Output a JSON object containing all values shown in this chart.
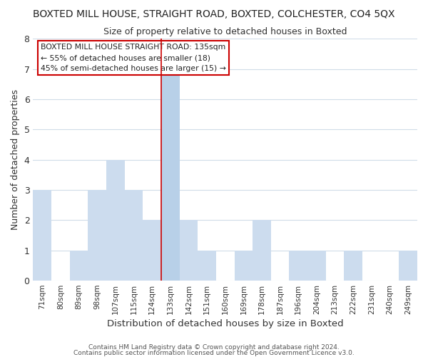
{
  "title": "BOXTED MILL HOUSE, STRAIGHT ROAD, BOXTED, COLCHESTER, CO4 5QX",
  "subtitle": "Size of property relative to detached houses in Boxted",
  "xlabel": "Distribution of detached houses by size in Boxted",
  "ylabel": "Number of detached properties",
  "bin_labels": [
    "71sqm",
    "80sqm",
    "89sqm",
    "98sqm",
    "107sqm",
    "115sqm",
    "124sqm",
    "133sqm",
    "142sqm",
    "151sqm",
    "160sqm",
    "169sqm",
    "178sqm",
    "187sqm",
    "196sqm",
    "204sqm",
    "213sqm",
    "222sqm",
    "231sqm",
    "240sqm",
    "249sqm"
  ],
  "bar_heights": [
    3,
    0,
    1,
    3,
    4,
    3,
    2,
    7,
    2,
    1,
    0,
    1,
    2,
    0,
    1,
    1,
    0,
    1,
    0,
    0,
    1
  ],
  "highlight_index": 7,
  "highlight_color": "#b8d0e8",
  "bar_color": "#ccdcee",
  "highlight_line_color": "#cc0000",
  "ylim": [
    0,
    8
  ],
  "annotation_text": "BOXTED MILL HOUSE STRAIGHT ROAD: 135sqm\n← 55% of detached houses are smaller (18)\n45% of semi-detached houses are larger (15) →",
  "footer1": "Contains HM Land Registry data © Crown copyright and database right 2024.",
  "footer2": "Contains public sector information licensed under the Open Government Licence v3.0.",
  "bg_color": "#ffffff",
  "grid_color": "#d0dce8",
  "box_color": "#cc0000"
}
